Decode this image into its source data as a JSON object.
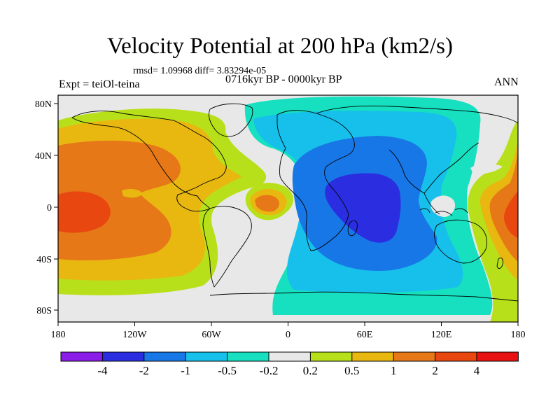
{
  "title": "Velocity Potential at 200 hPa (km2/s)",
  "stats": "rmsd= 1.09968 diff= 3.83294e-05",
  "experiment": "Expt = teiOl-teina",
  "period": "0716kyr BP - 0000kyr BP",
  "season": "ANN",
  "map": {
    "lon_ticks": [
      "180",
      "120W",
      "60W",
      "0",
      "60E",
      "120E",
      "180"
    ],
    "lat_ticks": [
      "80N",
      "40N",
      "0",
      "40S",
      "80S"
    ]
  },
  "colorbar": {
    "colors": [
      "#8a1ee8",
      "#2a2ee0",
      "#1877e6",
      "#16c0ea",
      "#16e0c0",
      "#e8e8e8",
      "#b8e01a",
      "#e8b810",
      "#e67818",
      "#e84810",
      "#e81212"
    ],
    "labels": [
      "-4",
      "-2",
      "-1",
      "-0.5",
      "-0.2",
      "0.2",
      "0.5",
      "1",
      "2",
      "4"
    ]
  },
  "colors": {
    "neg_strong": "#2a2ee0",
    "neg_mid": "#1877e6",
    "neg_weak": "#16c0ea",
    "neg_faint": "#16e0c0",
    "neutral": "#e8e8e8",
    "pos_faint": "#b8e01a",
    "pos_weak": "#e8b810",
    "pos_mid": "#e67818",
    "pos_strong": "#e84810"
  }
}
